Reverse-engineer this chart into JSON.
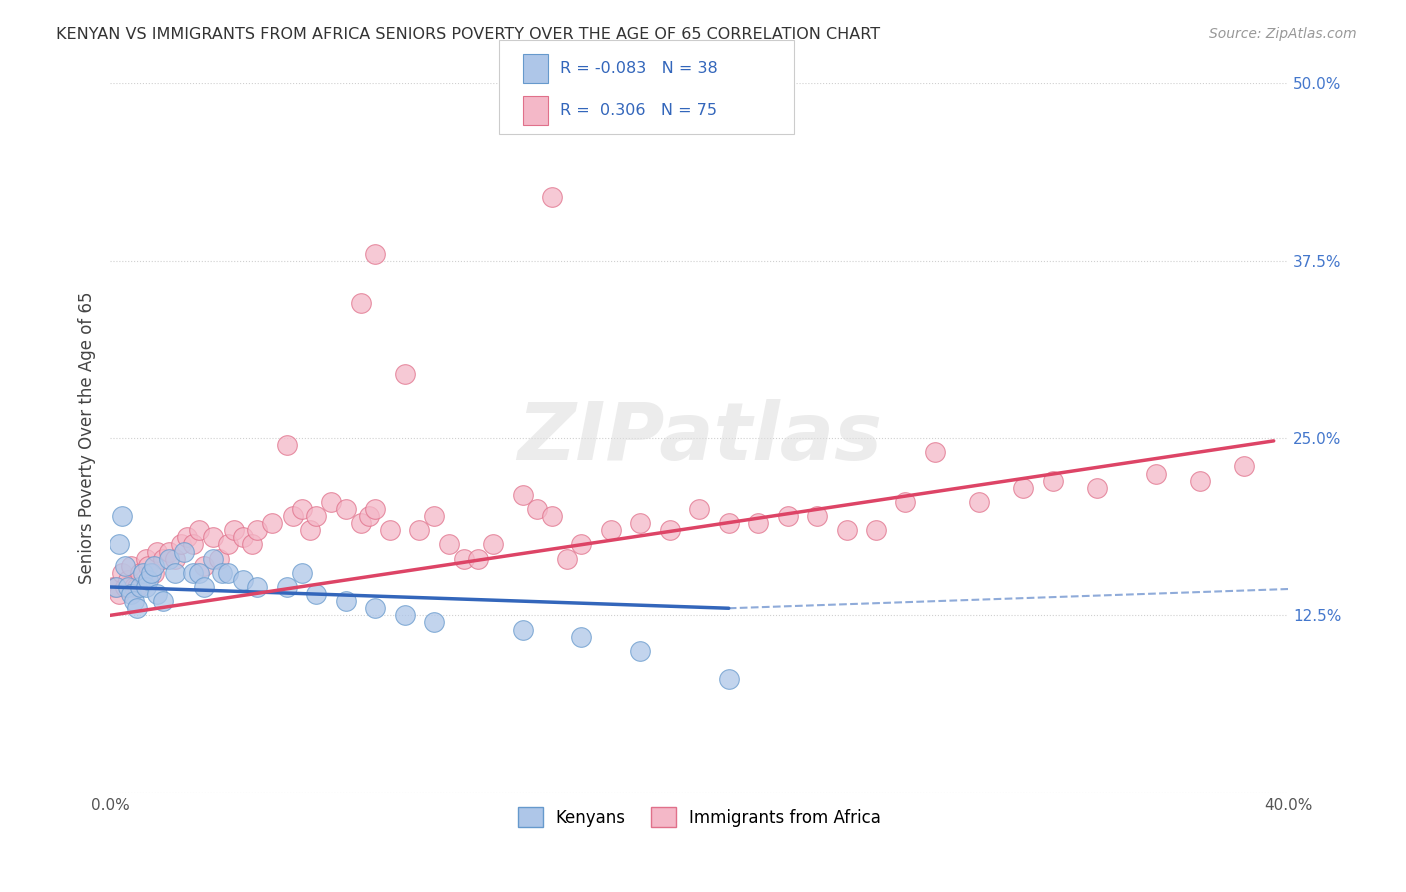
{
  "title": "KENYAN VS IMMIGRANTS FROM AFRICA SENIORS POVERTY OVER THE AGE OF 65 CORRELATION CHART",
  "source": "Source: ZipAtlas.com",
  "ylabel": "Seniors Poverty Over the Age of 65",
  "xlim": [
    0.0,
    0.4
  ],
  "ylim": [
    0.0,
    0.5
  ],
  "xticks": [
    0.0,
    0.05,
    0.1,
    0.15,
    0.2,
    0.25,
    0.3,
    0.35,
    0.4
  ],
  "xtick_labels": [
    "0.0%",
    "",
    "",
    "",
    "",
    "",
    "",
    "",
    "40.0%"
  ],
  "yticks_right": [
    0.0,
    0.125,
    0.25,
    0.375,
    0.5
  ],
  "ytick_labels_right": [
    "",
    "12.5%",
    "25.0%",
    "37.5%",
    "50.0%"
  ],
  "background_color": "#ffffff",
  "grid_color": "#d0d0d0",
  "kenyan_color": "#aec6e8",
  "africa_color": "#f4b8c8",
  "kenyan_edge_color": "#6699cc",
  "africa_edge_color": "#e0708a",
  "kenyan_line_color": "#3366bb",
  "africa_line_color": "#dd4466",
  "r_kenyan": -0.083,
  "n_kenyan": 38,
  "r_africa": 0.306,
  "n_africa": 75,
  "legend_label_kenyan": "Kenyans",
  "legend_label_africa": "Immigrants from Africa",
  "kenyan_x": [
    0.002,
    0.003,
    0.004,
    0.005,
    0.006,
    0.007,
    0.008,
    0.009,
    0.01,
    0.011,
    0.012,
    0.013,
    0.014,
    0.015,
    0.016,
    0.018,
    0.02,
    0.022,
    0.025,
    0.028,
    0.03,
    0.032,
    0.035,
    0.038,
    0.04,
    0.045,
    0.05,
    0.06,
    0.065,
    0.07,
    0.08,
    0.09,
    0.1,
    0.11,
    0.14,
    0.16,
    0.18,
    0.21
  ],
  "kenyan_y": [
    0.145,
    0.175,
    0.195,
    0.16,
    0.145,
    0.14,
    0.135,
    0.13,
    0.145,
    0.155,
    0.145,
    0.15,
    0.155,
    0.16,
    0.14,
    0.135,
    0.165,
    0.155,
    0.17,
    0.155,
    0.155,
    0.145,
    0.165,
    0.155,
    0.155,
    0.15,
    0.145,
    0.145,
    0.155,
    0.14,
    0.135,
    0.13,
    0.125,
    0.12,
    0.115,
    0.11,
    0.1,
    0.08
  ],
  "africa_x": [
    0.001,
    0.002,
    0.003,
    0.004,
    0.005,
    0.006,
    0.007,
    0.008,
    0.009,
    0.01,
    0.012,
    0.013,
    0.015,
    0.016,
    0.018,
    0.02,
    0.022,
    0.024,
    0.026,
    0.028,
    0.03,
    0.032,
    0.035,
    0.037,
    0.04,
    0.042,
    0.045,
    0.048,
    0.05,
    0.055,
    0.06,
    0.062,
    0.065,
    0.068,
    0.07,
    0.075,
    0.08,
    0.085,
    0.088,
    0.09,
    0.095,
    0.1,
    0.105,
    0.11,
    0.115,
    0.12,
    0.125,
    0.13,
    0.14,
    0.145,
    0.15,
    0.155,
    0.16,
    0.17,
    0.18,
    0.19,
    0.2,
    0.21,
    0.22,
    0.23,
    0.24,
    0.25,
    0.26,
    0.27,
    0.28,
    0.295,
    0.31,
    0.32,
    0.335,
    0.355,
    0.37,
    0.385,
    0.09,
    0.15,
    0.085
  ],
  "africa_y": [
    0.145,
    0.145,
    0.14,
    0.155,
    0.145,
    0.15,
    0.16,
    0.145,
    0.145,
    0.155,
    0.165,
    0.16,
    0.155,
    0.17,
    0.165,
    0.17,
    0.165,
    0.175,
    0.18,
    0.175,
    0.185,
    0.16,
    0.18,
    0.165,
    0.175,
    0.185,
    0.18,
    0.175,
    0.185,
    0.19,
    0.245,
    0.195,
    0.2,
    0.185,
    0.195,
    0.205,
    0.2,
    0.19,
    0.195,
    0.2,
    0.185,
    0.295,
    0.185,
    0.195,
    0.175,
    0.165,
    0.165,
    0.175,
    0.21,
    0.2,
    0.195,
    0.165,
    0.175,
    0.185,
    0.19,
    0.185,
    0.2,
    0.19,
    0.19,
    0.195,
    0.195,
    0.185,
    0.185,
    0.205,
    0.24,
    0.205,
    0.215,
    0.22,
    0.215,
    0.225,
    0.22,
    0.23,
    0.38,
    0.42,
    0.345
  ]
}
